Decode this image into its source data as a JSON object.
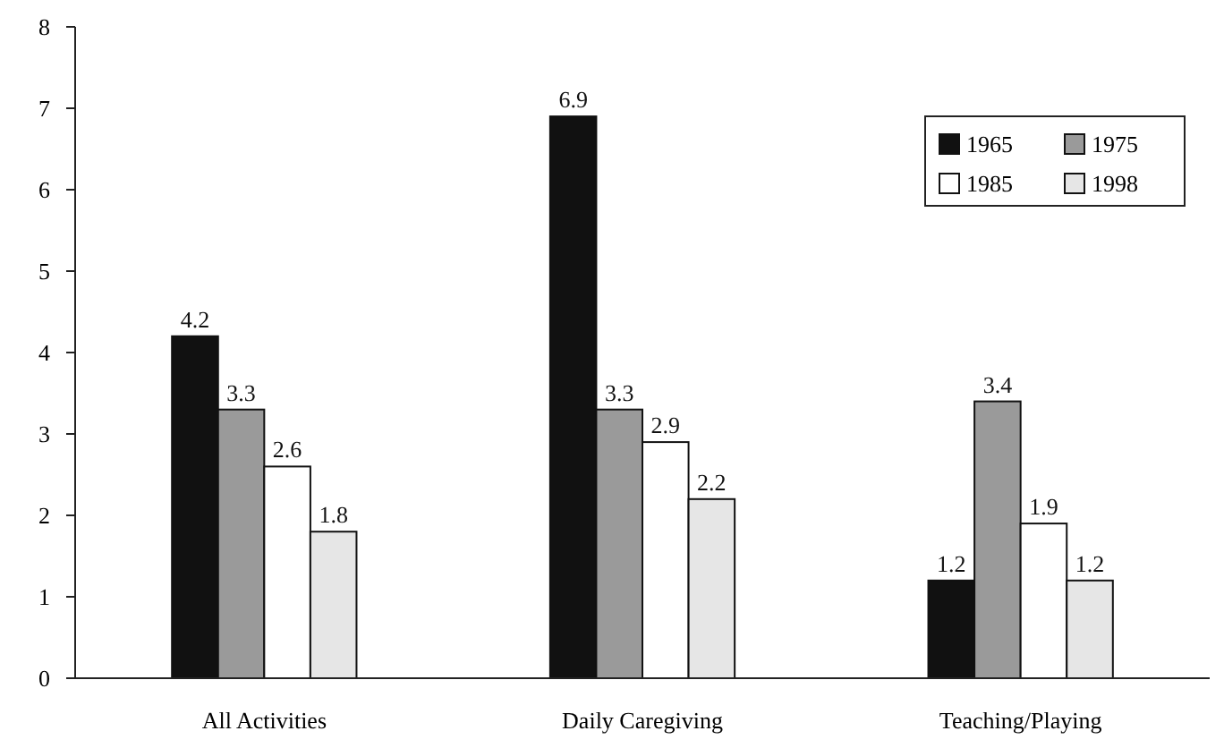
{
  "chart_data": {
    "type": "bar",
    "categories": [
      "All Activities",
      "Daily Caregiving",
      "Teaching/Playing"
    ],
    "series": [
      {
        "name": "1965",
        "color": "#111111",
        "values": [
          4.2,
          6.9,
          1.2
        ]
      },
      {
        "name": "1975",
        "color": "#9a9a9a",
        "values": [
          3.3,
          3.3,
          3.4
        ]
      },
      {
        "name": "1985",
        "color": "#ffffff",
        "values": [
          2.6,
          2.9,
          1.9
        ]
      },
      {
        "name": "1998",
        "color": "#e6e6e6",
        "values": [
          1.8,
          2.2,
          1.2
        ]
      }
    ],
    "ylim": [
      0,
      8
    ],
    "yticks": [
      0,
      1,
      2,
      3,
      4,
      5,
      6,
      7,
      8
    ],
    "grid": false,
    "legend": "top right",
    "data_labels": true
  }
}
